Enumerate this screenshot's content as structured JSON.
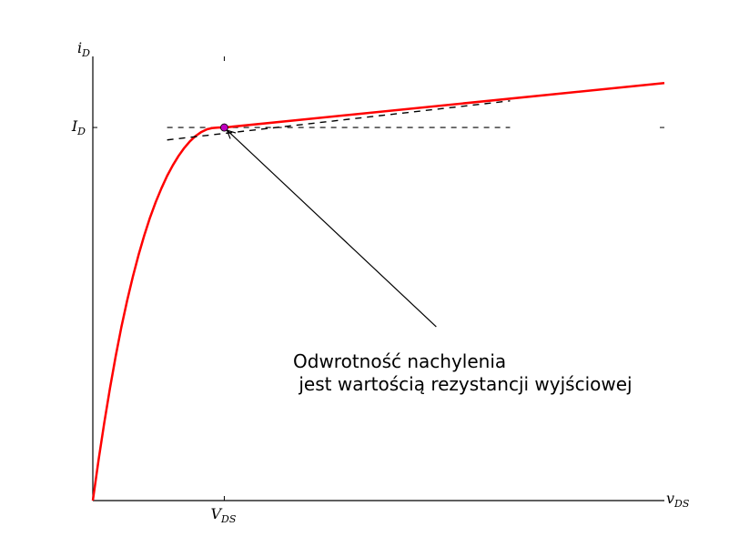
{
  "chart_data": {
    "type": "line",
    "title": "",
    "xlabel": {
      "main": "v",
      "sub": "DS"
    },
    "ylabel": {
      "main": "i",
      "sub": "D"
    },
    "xlim": [
      0,
      10
    ],
    "ylim": [
      0,
      10
    ],
    "grid": false,
    "x_ticks": [
      {
        "value": 2.3,
        "main": "V",
        "sub": "DS"
      }
    ],
    "y_ticks": [
      {
        "value": 8.4,
        "main": "I",
        "sub": "D"
      }
    ],
    "operating_point": {
      "x": 2.3,
      "y": 8.4,
      "color": "#bf00bf"
    },
    "series": [
      {
        "color": "#ff0000",
        "x": [
          0,
          0.1,
          0.2,
          0.3,
          0.4,
          0.5,
          0.6,
          0.7,
          0.8,
          0.9,
          1.0,
          1.1,
          1.2,
          1.3,
          1.4,
          1.5,
          1.6,
          1.7,
          1.8,
          1.9,
          2.0,
          2.1,
          2.2,
          2.3,
          10.0
        ],
        "y": [
          0,
          0.91,
          1.75,
          2.53,
          3.25,
          3.91,
          4.5,
          5.04,
          5.53,
          5.97,
          6.37,
          6.72,
          7.03,
          7.31,
          7.55,
          7.76,
          7.94,
          8.09,
          8.21,
          8.3,
          8.36,
          8.39,
          8.4,
          8.4,
          9.4
        ]
      }
    ],
    "tangent_line": {
      "x": [
        1.3,
        7.3
      ],
      "y": [
        8.12,
        9.0
      ],
      "style": "dashed",
      "color": "#000000"
    },
    "horizontal_ref": {
      "x": [
        1.3,
        7.3
      ],
      "y": 8.4,
      "style": "dashed",
      "color": "#000000"
    },
    "annotation": {
      "lines": [
        "Odwrotność nachylenia",
        " jest wartością rezystancji wyjściowej"
      ],
      "arrow_to": {
        "x": 2.3,
        "y": 8.4
      },
      "text_at": {
        "x": 6.2,
        "y": 3.4
      }
    }
  }
}
